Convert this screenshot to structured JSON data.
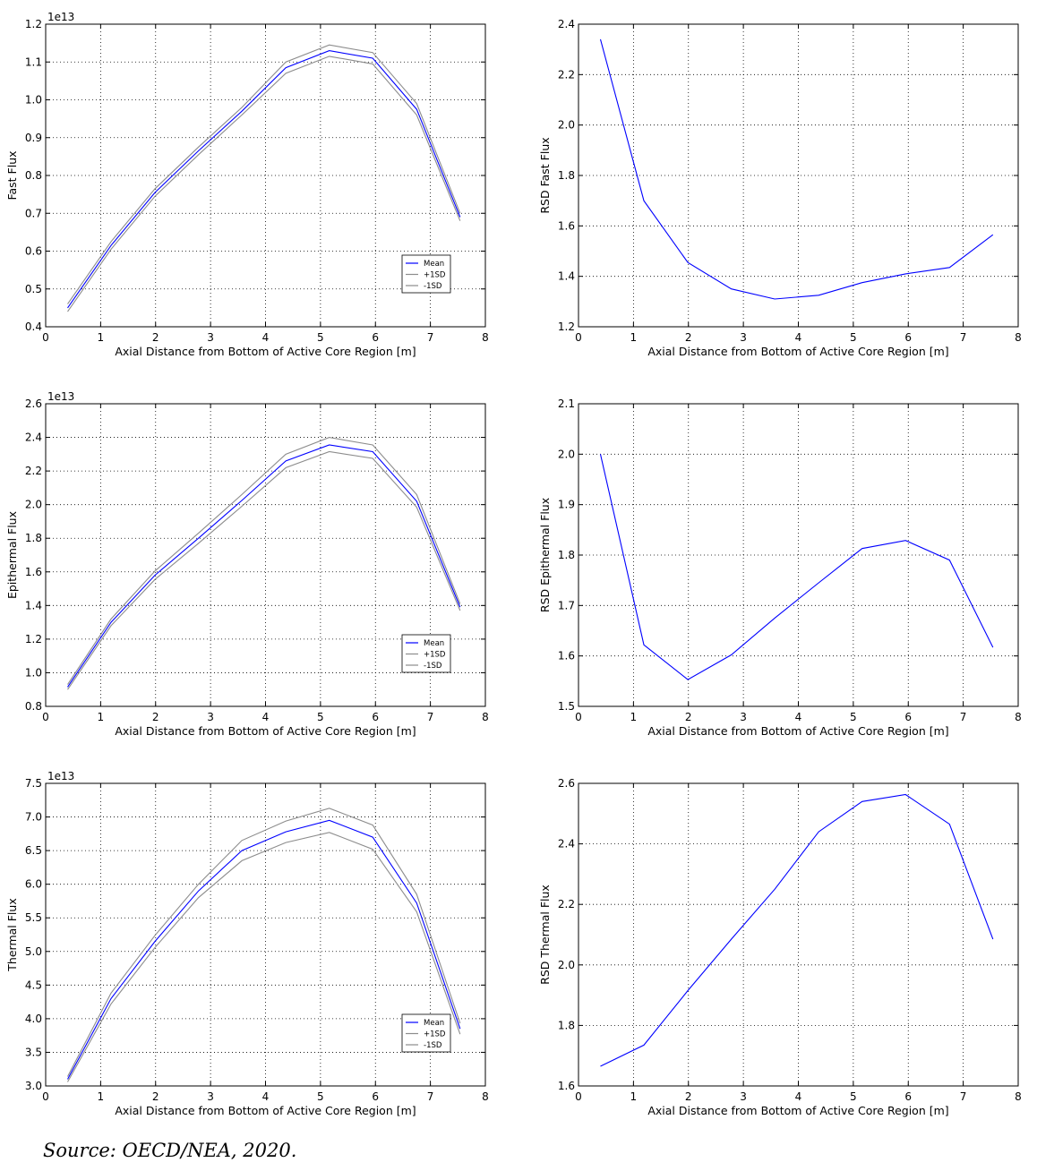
{
  "source_note": "Source: OECD/NEA, 2020.",
  "legend_labels": [
    "Mean",
    "+1SD",
    "-1SD"
  ],
  "colors": {
    "mean": "#0000ff",
    "sd": "#8c8c8c",
    "rsd": "#0000ff",
    "grid": "#000000"
  },
  "chart_data": [
    {
      "type": "line",
      "ylabel": "Fast Flux",
      "xlabel": "Axial Distance from Bottom of Active Core Region [m]",
      "scale_label": "1e13",
      "xlim": [
        0,
        8
      ],
      "ylim": [
        0.4,
        1.2
      ],
      "xticks": [
        0,
        1,
        2,
        3,
        4,
        5,
        6,
        7,
        8
      ],
      "yticks": [
        0.4,
        0.5,
        0.6,
        0.7,
        0.8,
        0.9,
        1.0,
        1.1,
        1.2
      ],
      "ytick_decimals": 1,
      "legend": "lower-right",
      "x": [
        0.4,
        1.19,
        1.99,
        2.78,
        3.57,
        4.37,
        5.16,
        5.95,
        6.75,
        7.54
      ],
      "series": [
        {
          "name": "Mean",
          "role": "mean",
          "values": [
            0.45,
            0.615,
            0.755,
            0.865,
            0.97,
            1.085,
            1.13,
            1.11,
            0.975,
            0.69
          ]
        },
        {
          "name": "+1SD",
          "role": "sd",
          "values": [
            0.46,
            0.625,
            0.765,
            0.875,
            0.98,
            1.1,
            1.145,
            1.125,
            0.99,
            0.7
          ]
        },
        {
          "name": "-1SD",
          "role": "sd",
          "values": [
            0.44,
            0.605,
            0.745,
            0.855,
            0.96,
            1.07,
            1.115,
            1.095,
            0.96,
            0.68
          ]
        }
      ]
    },
    {
      "type": "line",
      "ylabel": "RSD Fast Flux",
      "xlabel": "Axial Distance from Bottom of Active Core Region [m]",
      "xlim": [
        0,
        8
      ],
      "ylim": [
        1.2,
        2.4
      ],
      "xticks": [
        0,
        1,
        2,
        3,
        4,
        5,
        6,
        7,
        8
      ],
      "yticks": [
        1.2,
        1.4,
        1.6,
        1.8,
        2.0,
        2.2,
        2.4
      ],
      "ytick_decimals": 1,
      "x": [
        0.4,
        1.19,
        1.99,
        2.78,
        3.57,
        4.37,
        5.16,
        5.95,
        6.75,
        7.54
      ],
      "series": [
        {
          "role": "rsd",
          "values": [
            2.34,
            1.7,
            1.455,
            1.35,
            1.31,
            1.325,
            1.375,
            1.41,
            1.435,
            1.565
          ]
        }
      ]
    },
    {
      "type": "line",
      "ylabel": "Epithermal Flux",
      "xlabel": "Axial Distance from Bottom of Active Core Region [m]",
      "scale_label": "1e13",
      "xlim": [
        0,
        8
      ],
      "ylim": [
        0.8,
        2.6
      ],
      "xticks": [
        0,
        1,
        2,
        3,
        4,
        5,
        6,
        7,
        8
      ],
      "yticks": [
        0.8,
        1.0,
        1.2,
        1.4,
        1.6,
        1.8,
        2.0,
        2.2,
        2.4,
        2.6
      ],
      "ytick_decimals": 1,
      "legend": "lower-right",
      "x": [
        0.4,
        1.19,
        1.99,
        2.78,
        3.57,
        4.37,
        5.16,
        5.95,
        6.75,
        7.54
      ],
      "series": [
        {
          "name": "Mean",
          "role": "mean",
          "values": [
            0.915,
            1.3,
            1.58,
            1.8,
            2.025,
            2.26,
            2.355,
            2.315,
            2.02,
            1.39
          ]
        },
        {
          "name": "+1SD",
          "role": "sd",
          "values": [
            0.93,
            1.32,
            1.605,
            1.83,
            2.06,
            2.3,
            2.4,
            2.355,
            2.06,
            1.41
          ]
        },
        {
          "name": "-1SD",
          "role": "sd",
          "values": [
            0.9,
            1.28,
            1.555,
            1.77,
            1.99,
            2.22,
            2.315,
            2.275,
            1.985,
            1.37
          ]
        }
      ]
    },
    {
      "type": "line",
      "ylabel": "RSD Epithermal Flux",
      "xlabel": "Axial Distance from Bottom of Active Core Region [m]",
      "xlim": [
        0,
        8
      ],
      "ylim": [
        1.5,
        2.1
      ],
      "xticks": [
        0,
        1,
        2,
        3,
        4,
        5,
        6,
        7,
        8
      ],
      "yticks": [
        1.5,
        1.6,
        1.7,
        1.8,
        1.9,
        2.0,
        2.1
      ],
      "ytick_decimals": 1,
      "x": [
        0.4,
        1.19,
        1.99,
        2.78,
        3.57,
        4.37,
        5.16,
        5.95,
        6.75,
        7.54
      ],
      "series": [
        {
          "role": "rsd",
          "values": [
            2.0,
            1.622,
            1.553,
            1.602,
            1.675,
            1.745,
            1.813,
            1.829,
            1.79,
            1.617
          ]
        }
      ]
    },
    {
      "type": "line",
      "ylabel": "Thermal Flux",
      "xlabel": "Axial Distance from Bottom of Active Core Region [m]",
      "scale_label": "1e13",
      "xlim": [
        0,
        8
      ],
      "ylim": [
        3.0,
        7.5
      ],
      "xticks": [
        0,
        1,
        2,
        3,
        4,
        5,
        6,
        7,
        8
      ],
      "yticks": [
        3.0,
        3.5,
        4.0,
        4.5,
        5.0,
        5.5,
        6.0,
        6.5,
        7.0,
        7.5
      ],
      "ytick_decimals": 1,
      "legend": "lower-right",
      "x": [
        0.4,
        1.19,
        1.99,
        2.78,
        3.57,
        4.37,
        5.16,
        5.95,
        6.75,
        7.54
      ],
      "series": [
        {
          "name": "Mean",
          "role": "mean",
          "values": [
            3.1,
            4.3,
            5.15,
            5.9,
            6.5,
            6.78,
            6.95,
            6.7,
            5.72,
            3.85
          ]
        },
        {
          "name": "+1SD",
          "role": "sd",
          "values": [
            3.14,
            4.38,
            5.24,
            6.0,
            6.65,
            6.94,
            7.13,
            6.88,
            5.85,
            3.93
          ]
        },
        {
          "name": "-1SD",
          "role": "sd",
          "values": [
            3.06,
            4.22,
            5.06,
            5.8,
            6.35,
            6.62,
            6.77,
            6.52,
            5.59,
            3.77
          ]
        }
      ]
    },
    {
      "type": "line",
      "ylabel": "RSD Thermal Flux",
      "xlabel": "Axial Distance from Bottom of Active Core Region [m]",
      "xlim": [
        0,
        8
      ],
      "ylim": [
        1.6,
        2.6
      ],
      "xticks": [
        0,
        1,
        2,
        3,
        4,
        5,
        6,
        7,
        8
      ],
      "yticks": [
        1.6,
        1.8,
        2.0,
        2.2,
        2.4,
        2.6
      ],
      "ytick_decimals": 1,
      "x": [
        0.4,
        1.19,
        1.99,
        2.78,
        3.57,
        4.37,
        5.16,
        5.95,
        6.75,
        7.54
      ],
      "series": [
        {
          "role": "rsd",
          "values": [
            1.665,
            1.735,
            1.915,
            2.085,
            2.25,
            2.44,
            2.54,
            2.563,
            2.465,
            2.085
          ]
        }
      ]
    }
  ]
}
